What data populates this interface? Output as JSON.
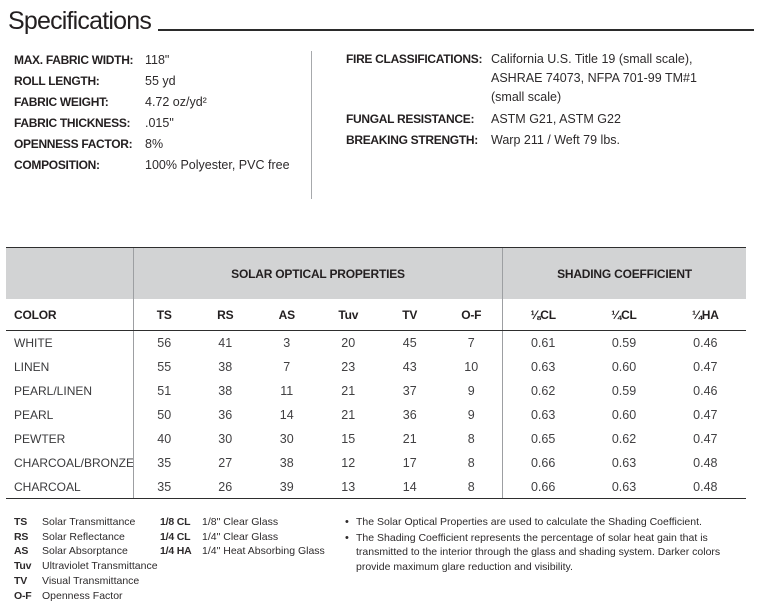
{
  "page": {
    "title": "Specifications"
  },
  "specs": {
    "left": [
      {
        "label": "MAX. FABRIC WIDTH:",
        "value": "118\""
      },
      {
        "label": "ROLL LENGTH:",
        "value": "55 yd"
      },
      {
        "label": "FABRIC WEIGHT:",
        "value": "4.72 oz/yd²"
      },
      {
        "label": "FABRIC THICKNESS:",
        "value": ".015\""
      },
      {
        "label": "OPENNESS FACTOR:",
        "value": "8%"
      },
      {
        "label": "COMPOSITION:",
        "value": "100% Polyester, PVC free"
      }
    ],
    "right": {
      "fire": {
        "label": "FIRE CLASSIFICATIONS:",
        "lines": [
          "California U.S. Title 19 (small scale),",
          "ASHRAE 74073, NFPA 701-99 TM#1",
          "(small scale)"
        ]
      },
      "fungal": {
        "label": "FUNGAL RESISTANCE:",
        "value": "ASTM G21, ASTM G22"
      },
      "breaking": {
        "label": "BREAKING STRENGTH:",
        "value": "Warp 211 / Weft 79 lbs."
      }
    }
  },
  "table": {
    "group_headers": {
      "solar": "SOLAR OPTICAL PROPERTIES",
      "shading": "SHADING COEFFICIENT"
    },
    "columns": [
      "COLOR",
      "TS",
      "RS",
      "AS",
      "Tuv",
      "TV",
      "O-F",
      "⅛CL",
      "¼CL",
      "¼HA"
    ],
    "rows": [
      {
        "color": "WHITE",
        "values": [
          "56",
          "41",
          "3",
          "20",
          "45",
          "7",
          "0.61",
          "0.59",
          "0.46"
        ]
      },
      {
        "color": "LINEN",
        "values": [
          "55",
          "38",
          "7",
          "23",
          "43",
          "10",
          "0.63",
          "0.60",
          "0.47"
        ]
      },
      {
        "color": "PEARL/LINEN",
        "values": [
          "51",
          "38",
          "11",
          "21",
          "37",
          "9",
          "0.62",
          "0.59",
          "0.46"
        ]
      },
      {
        "color": "PEARL",
        "values": [
          "50",
          "36",
          "14",
          "21",
          "36",
          "9",
          "0.63",
          "0.60",
          "0.47"
        ]
      },
      {
        "color": "PEWTER",
        "values": [
          "40",
          "30",
          "30",
          "15",
          "21",
          "8",
          "0.65",
          "0.62",
          "0.47"
        ]
      },
      {
        "color": "CHARCOAL/BRONZE",
        "values": [
          "35",
          "27",
          "38",
          "12",
          "17",
          "8",
          "0.66",
          "0.63",
          "0.48"
        ]
      },
      {
        "color": "CHARCOAL",
        "values": [
          "35",
          "26",
          "39",
          "13",
          "14",
          "8",
          "0.66",
          "0.63",
          "0.48"
        ]
      }
    ]
  },
  "legend": {
    "abbreviations": [
      {
        "abbr": "TS",
        "def": "Solar Transmittance"
      },
      {
        "abbr": "RS",
        "def": "Solar Reflectance"
      },
      {
        "abbr": "AS",
        "def": "Solar Absorptance"
      },
      {
        "abbr": "Tuv",
        "def": "Ultraviolet Transmittance"
      },
      {
        "abbr": "TV",
        "def": "Visual Transmittance"
      },
      {
        "abbr": "O-F",
        "def": "Openness Factor"
      }
    ],
    "glass": [
      {
        "abbr": "1/8 CL",
        "def": "1/8\" Clear Glass"
      },
      {
        "abbr": "1/4 CL",
        "def": "1/4\" Clear Glass"
      },
      {
        "abbr": "1/4 HA",
        "def": "1/4\" Heat Absorbing Glass"
      }
    ]
  },
  "notes": [
    "The Solar Optical Properties are used to calculate the Shading Coefficient.",
    "The Shading Coefficient represents the percentage of solar heat gain that is transmitted to the interior through the glass and shading system. Darker colors provide maximum glare reduction and visibility."
  ],
  "colors": {
    "band_gray": "#d2d3d4",
    "border_dark": "#2e2e2e",
    "divider_gray": "#9d9fa2",
    "text_dark": "#231f20"
  }
}
